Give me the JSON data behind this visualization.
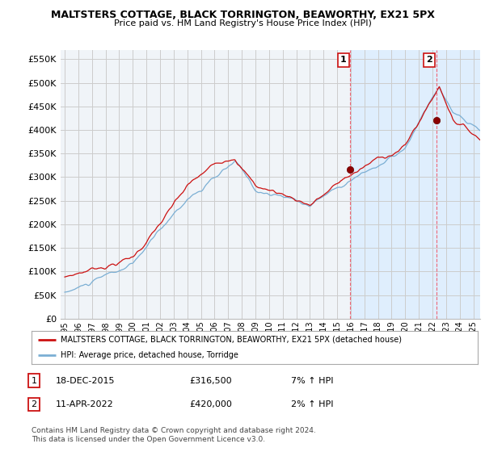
{
  "title": "MALTSTERS COTTAGE, BLACK TORRINGTON, BEAWORTHY, EX21 5PX",
  "subtitle": "Price paid vs. HM Land Registry's House Price Index (HPI)",
  "ytick_values": [
    0,
    50000,
    100000,
    150000,
    200000,
    250000,
    300000,
    350000,
    400000,
    450000,
    500000,
    550000
  ],
  "ylim": [
    0,
    570000
  ],
  "sale1_x_year": 2015.958,
  "sale1_y": 316500,
  "sale1_label": "1",
  "sale2_x_year": 2022.274,
  "sale2_y": 420000,
  "sale2_label": "2",
  "hpi_color": "#7bafd4",
  "property_color": "#cc1111",
  "sale_vline_color": "#cc1111",
  "sale_dot_color": "#8b0000",
  "bg_color": "#ffffff",
  "plot_bg_color": "#f0f4f8",
  "legend_line1": "MALTSTERS COTTAGE, BLACK TORRINGTON, BEAWORTHY, EX21 5PX (detached house)",
  "legend_line2": "HPI: Average price, detached house, Torridge",
  "note1_date": "18-DEC-2015",
  "note1_price": "£316,500",
  "note1_hpi": "7% ↑ HPI",
  "note2_date": "11-APR-2022",
  "note2_price": "£420,000",
  "note2_hpi": "2% ↑ HPI",
  "footnote": "Contains HM Land Registry data © Crown copyright and database right 2024.\nThis data is licensed under the Open Government Licence v3.0.",
  "grid_color": "#cccccc",
  "highlight_bg": "#ddeeff",
  "xlim_start": 1995.0,
  "xlim_end": 2025.5
}
